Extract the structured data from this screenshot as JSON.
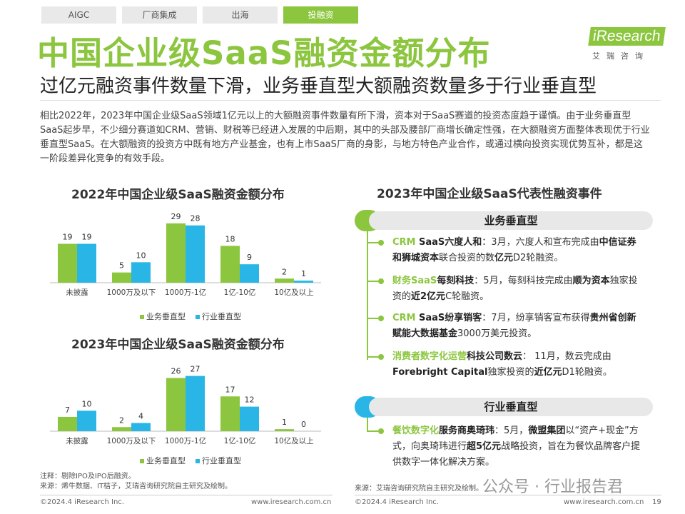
{
  "tabs": [
    "AIGC",
    "厂商集成",
    "出海",
    "投融资"
  ],
  "logo": {
    "text": "iResearch",
    "cn": "艾瑞咨询"
  },
  "title": "中国企业级SaaS融资金额分布",
  "subtitle": "过亿元融资事件数量下滑，业务垂直型大额融资数量多于行业垂直型",
  "body": "相比2022年，2023年中国企业级SaaS领域1亿元以上的大额融资事件数量有所下滑，资本对于SaaS赛道的投资态度趋于谨慎。由于业务垂直型SaaS起步早，不少细分赛道如CRM、营销、财税等已经进入发展的中后期，其中的头部及腰部厂商增长确定性强，在大额融资方面整体表现优于行业垂直型SaaS。在大额融资的投资方中既有地方产业基金，也有上市SaaS厂商的身影，与地方特色产业合作，或通过横向投资实现优势互补，都是这一阶段差异化竞争的有效手段。",
  "colors": {
    "green": "#8cc63f",
    "blue": "#29b6e6"
  },
  "chart_data": [
    {
      "type": "bar",
      "title": "2022年中国企业级SaaS融资金额分布",
      "categories": [
        "未披露",
        "1000万及以下",
        "1000万-1亿",
        "1亿-10亿",
        "10亿及以上"
      ],
      "series": [
        {
          "name": "业务垂直型",
          "color": "#8cc63f",
          "values": [
            19,
            5,
            29,
            18,
            2
          ]
        },
        {
          "name": "行业垂直型",
          "color": "#29b6e6",
          "values": [
            19,
            10,
            28,
            9,
            1
          ]
        }
      ],
      "ylim": [
        0,
        30
      ],
      "legend": "bottom"
    },
    {
      "type": "bar",
      "title": "2023年中国企业级SaaS融资金额分布",
      "categories": [
        "未披露",
        "1000万及以下",
        "1000万-1亿",
        "1亿-10亿",
        "10亿及以上"
      ],
      "series": [
        {
          "name": "业务垂直型",
          "color": "#8cc63f",
          "values": [
            7,
            2,
            26,
            17,
            1
          ]
        },
        {
          "name": "行业垂直型",
          "color": "#29b6e6",
          "values": [
            10,
            4,
            27,
            12,
            0
          ]
        }
      ],
      "ylim": [
        0,
        30
      ],
      "legend": "bottom"
    }
  ],
  "legend": {
    "s1": "业务垂直型",
    "s2": "行业垂直型"
  },
  "right": {
    "title": "2023年中国企业级SaaS代表性融资事件",
    "sections": [
      {
        "name": "业务垂直型",
        "events": [
          {
            "tag": "CRM",
            "company": " SaaS六度人和",
            "text": "：3月，六度人和宣布完成由",
            "b1": "中信证券和狮城资本",
            "t2": "联合投资的数",
            "b2": "亿元",
            "t3": "D2轮融资。"
          },
          {
            "tag": "财务SaaS",
            "company": "每刻科技",
            "text": "：5月，每刻科技完成由",
            "b1": "顺为资本",
            "t2": "独家投资的",
            "b2": "近2亿元",
            "t3": "C轮融资。"
          },
          {
            "tag": "CRM",
            "company": " SaaS纷享销客",
            "text": "：7月，纷享销客宣布获得",
            "b1": "贵州省创新赋能大数据基金",
            "t2": "3000万美元投资。",
            "b2": "",
            "t3": ""
          },
          {
            "tag": "消费者数字化运营",
            "company": "科技公司数云",
            "text": "： 11月，数云完成由",
            "b1": "Forebright Capital",
            "t2": "独家投资的",
            "b2": "近亿元",
            "t3": "D1轮融资。"
          }
        ]
      },
      {
        "name": "行业垂直型",
        "events": [
          {
            "tag": "餐饮数字化",
            "company": "服务商奥琦玮",
            "text": "：5月，",
            "b1": "微盟集团",
            "t2": "以“资产+现金”方式，向奥琦玮进行",
            "b2": "超5亿元",
            "t3": "战略投资，旨在为餐饮品牌客户提供数字一体化解决方案。"
          }
        ]
      }
    ]
  },
  "note": "注释：剔除IPO及IPO后融资。",
  "source_left": "来源：烯牛数据、IT桔子，艾瑞咨询研究院自主研究及绘制。",
  "source_right": "来源：艾瑞咨询研究院自主研究及绘制。",
  "footer": {
    "copyright": "©2024.4 iResearch Inc.",
    "url": "www.iresearch.com.cn",
    "page": "19"
  },
  "watermark": "公众号 · 行业报告君"
}
